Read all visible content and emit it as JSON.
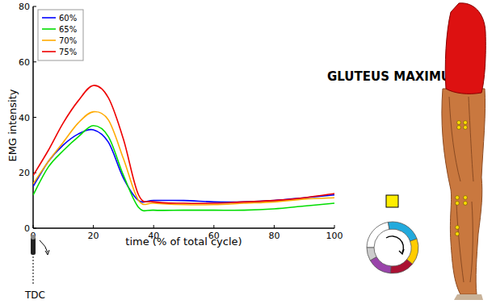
{
  "chart_data": {
    "type": "line",
    "x_label": "time (% of total cycle)",
    "y_label": "EMG intensity",
    "annotations": [
      "GLUTEUS MAXIMUS",
      "TDC"
    ],
    "x": [
      0,
      5,
      10,
      15,
      20,
      25,
      30,
      35,
      40,
      50,
      60,
      70,
      80,
      90,
      100
    ],
    "series": [
      {
        "name": "60%",
        "color": "#0000ff",
        "values": [
          15,
          24,
          30,
          34,
          35.5,
          31,
          18,
          10,
          10,
          10,
          9.5,
          9.5,
          10,
          11,
          12
        ]
      },
      {
        "name": "65%",
        "color": "#00dd00",
        "values": [
          12,
          22,
          28,
          33,
          37,
          33,
          19,
          7.5,
          6.5,
          6.5,
          6.5,
          6.5,
          7,
          8,
          9
        ]
      },
      {
        "name": "70%",
        "color": "#ffaa00",
        "values": [
          16,
          24,
          31,
          38,
          42,
          39,
          25,
          10,
          9,
          8.5,
          8.5,
          9,
          9.5,
          10.5,
          11
        ]
      },
      {
        "name": "75%",
        "color": "#ee0000",
        "values": [
          19,
          28,
          38,
          46,
          51.5,
          47,
          32,
          12,
          9.5,
          9,
          9,
          9.5,
          10,
          11,
          12.5
        ]
      }
    ],
    "xlim": [
      0,
      100
    ],
    "xticks": [
      0,
      20,
      40,
      60,
      80,
      100
    ],
    "ylim": [
      0,
      80
    ],
    "yticks": [
      0,
      20,
      40,
      60,
      80
    ],
    "legend": "upper left",
    "grid": false
  }
}
